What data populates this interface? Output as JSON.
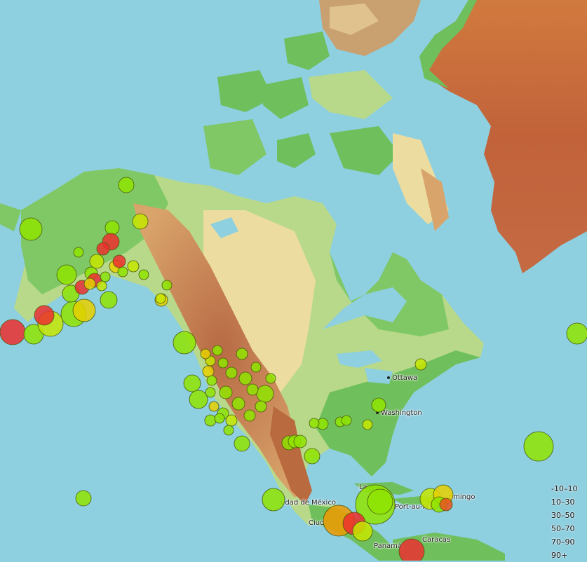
{
  "map": {
    "colors": {
      "ocean": "#8ecfe0",
      "lowland": "#6fbf5c",
      "plain": "#b8d98a",
      "plateau": "#ecdca0",
      "hills": "#d9a46b",
      "mountains": "#b96a3e",
      "ice": "#b04b3a"
    },
    "cities": [
      {
        "name": "Ottawa"
      },
      {
        "name": "Washington"
      },
      {
        "name": "udad de México"
      },
      {
        "name": "Ciud"
      },
      {
        "name": "Port-au-Pri"
      },
      {
        "name": "omingo"
      },
      {
        "name": "Caracas"
      },
      {
        "name": "Panamá"
      },
      {
        "name": "La"
      }
    ]
  },
  "legend": {
    "items": [
      {
        "label": "-10–10",
        "color": "#a3f600"
      },
      {
        "label": "10–30",
        "color": "#dcf400"
      },
      {
        "label": "30–50",
        "color": "#f7db11"
      },
      {
        "label": "50–70",
        "color": "#fdb72a"
      },
      {
        "label": "70–90",
        "color": "#fca35d"
      },
      {
        "label": "90+",
        "color": "#ff5f65"
      }
    ]
  },
  "quakes": {
    "depth_colors": {
      "shallow": "#8fe400",
      "light": "#c5e600",
      "mid": "#e6d000",
      "deep": "#f09a00",
      "deeper": "#e8541c",
      "deepest": "#ec2f2f"
    }
  }
}
